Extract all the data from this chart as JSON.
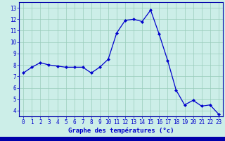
{
  "x": [
    0,
    1,
    2,
    3,
    4,
    5,
    6,
    7,
    8,
    9,
    10,
    11,
    12,
    13,
    14,
    15,
    16,
    17,
    18,
    19,
    20,
    21,
    22,
    23
  ],
  "y": [
    7.3,
    7.8,
    8.2,
    8.0,
    7.9,
    7.8,
    7.8,
    7.8,
    7.3,
    7.8,
    8.5,
    10.8,
    11.9,
    12.0,
    11.8,
    12.8,
    10.7,
    8.4,
    5.8,
    4.5,
    4.9,
    4.4,
    4.5,
    3.7
  ],
  "line_color": "#0000cc",
  "marker": "D",
  "marker_size": 2.0,
  "bg_color": "#cceee8",
  "plot_bg": "#cceee8",
  "grid_color": "#99ccbb",
  "xlabel": "Graphe des températures (°c)",
  "ylim": [
    3.5,
    13.5
  ],
  "xlim": [
    -0.5,
    23.5
  ],
  "yticks": [
    4,
    5,
    6,
    7,
    8,
    9,
    10,
    11,
    12,
    13
  ],
  "xticks": [
    0,
    1,
    2,
    3,
    4,
    5,
    6,
    7,
    8,
    9,
    10,
    11,
    12,
    13,
    14,
    15,
    16,
    17,
    18,
    19,
    20,
    21,
    22,
    23
  ],
  "tick_color": "#0000cc",
  "label_color": "#0000cc",
  "bottom_bar_color": "#0000aa",
  "label_fontsize": 6.5,
  "tick_fontsize": 5.5
}
